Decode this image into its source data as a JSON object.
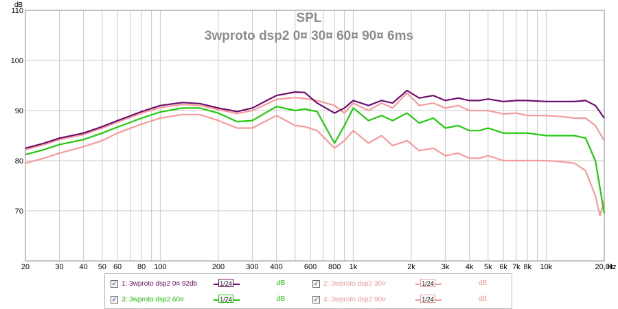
{
  "chart_data": {
    "type": "line",
    "title": "SPL",
    "subtitle": "3wproto dsp2 0¤ 30¤ 60¤ 90¤ 6ms",
    "y_unit": "dB",
    "x_unit": "Hz",
    "x_scale": "log",
    "xlim": [
      20,
      20000
    ],
    "ylim": [
      60,
      110
    ],
    "grid": true,
    "y_ticks": [
      {
        "value": 110,
        "label": "110"
      },
      {
        "value": 100,
        "label": "100"
      },
      {
        "value": 90,
        "label": "90"
      },
      {
        "value": 80,
        "label": "80"
      },
      {
        "value": 70,
        "label": "70"
      }
    ],
    "x_ticks": [
      {
        "value": 20,
        "label": "20"
      },
      {
        "value": 30,
        "label": "30"
      },
      {
        "value": 40,
        "label": "40"
      },
      {
        "value": 50,
        "label": "50"
      },
      {
        "value": 60,
        "label": "60"
      },
      {
        "value": 80,
        "label": "80"
      },
      {
        "value": 100,
        "label": "100"
      },
      {
        "value": 200,
        "label": "200"
      },
      {
        "value": 300,
        "label": "300"
      },
      {
        "value": 400,
        "label": "400"
      },
      {
        "value": 600,
        "label": "600"
      },
      {
        "value": 800,
        "label": "800"
      },
      {
        "value": 1000,
        "label": "1k"
      },
      {
        "value": 2000,
        "label": "2k"
      },
      {
        "value": 3000,
        "label": "3k"
      },
      {
        "value": 4000,
        "label": "4k"
      },
      {
        "value": 5000,
        "label": "5k"
      },
      {
        "value": 6000,
        "label": "6k"
      },
      {
        "value": 7000,
        "label": "7k"
      },
      {
        "value": 8000,
        "label": "8k"
      },
      {
        "value": 10000,
        "label": "10k"
      },
      {
        "value": 20000,
        "label": "20,0k"
      }
    ],
    "series": [
      {
        "name": "1: 3wproto dsp2 0¤ 92db",
        "color": "#6e0d6e",
        "points": [
          [
            20,
            82.5
          ],
          [
            25,
            83.5
          ],
          [
            30,
            84.5
          ],
          [
            40,
            85.5
          ],
          [
            50,
            86.8
          ],
          [
            60,
            88
          ],
          [
            80,
            89.8
          ],
          [
            100,
            91
          ],
          [
            130,
            91.6
          ],
          [
            160,
            91.4
          ],
          [
            200,
            90.5
          ],
          [
            250,
            89.8
          ],
          [
            300,
            90.5
          ],
          [
            400,
            93
          ],
          [
            500,
            93.7
          ],
          [
            560,
            93.6
          ],
          [
            650,
            91.5
          ],
          [
            800,
            89.5
          ],
          [
            900,
            90.5
          ],
          [
            1000,
            92
          ],
          [
            1200,
            91
          ],
          [
            1400,
            92
          ],
          [
            1600,
            91.5
          ],
          [
            1900,
            94
          ],
          [
            2200,
            92.5
          ],
          [
            2600,
            93
          ],
          [
            3000,
            92
          ],
          [
            3500,
            92.5
          ],
          [
            4000,
            92
          ],
          [
            4500,
            92
          ],
          [
            5000,
            92.3
          ],
          [
            6000,
            91.8
          ],
          [
            7000,
            92
          ],
          [
            8000,
            92
          ],
          [
            10000,
            91.8
          ],
          [
            12000,
            91.8
          ],
          [
            14000,
            91.8
          ],
          [
            16000,
            92
          ],
          [
            18000,
            91
          ],
          [
            20000,
            88.5
          ]
        ]
      },
      {
        "name": "2: 3wproto dsp2 30¤",
        "color": "#f49b9b",
        "points": [
          [
            20,
            82.2
          ],
          [
            25,
            83.2
          ],
          [
            30,
            84.2
          ],
          [
            40,
            85.2
          ],
          [
            50,
            86.5
          ],
          [
            60,
            87.7
          ],
          [
            80,
            89.5
          ],
          [
            100,
            90.6
          ],
          [
            130,
            91.2
          ],
          [
            160,
            91
          ],
          [
            200,
            90.2
          ],
          [
            250,
            89.4
          ],
          [
            300,
            90
          ],
          [
            400,
            92.2
          ],
          [
            500,
            92.6
          ],
          [
            560,
            92.4
          ],
          [
            650,
            92
          ],
          [
            800,
            91
          ],
          [
            900,
            89.5
          ],
          [
            1000,
            91.5
          ],
          [
            1200,
            90
          ],
          [
            1400,
            91.5
          ],
          [
            1600,
            90.5
          ],
          [
            1900,
            93.5
          ],
          [
            2200,
            91
          ],
          [
            2600,
            91.5
          ],
          [
            3000,
            90.5
          ],
          [
            3500,
            91
          ],
          [
            4000,
            90
          ],
          [
            4500,
            90
          ],
          [
            5000,
            90
          ],
          [
            6000,
            89.3
          ],
          [
            7000,
            89.5
          ],
          [
            8000,
            89
          ],
          [
            10000,
            89
          ],
          [
            12000,
            88.8
          ],
          [
            14000,
            88.5
          ],
          [
            16000,
            88.5
          ],
          [
            18000,
            87
          ],
          [
            20000,
            84
          ]
        ]
      },
      {
        "name": "3: 3wproto dsp2 60¤",
        "color": "#22c90d",
        "points": [
          [
            20,
            81.2
          ],
          [
            25,
            82.2
          ],
          [
            30,
            83.2
          ],
          [
            40,
            84.2
          ],
          [
            50,
            85.5
          ],
          [
            60,
            86.7
          ],
          [
            80,
            88.5
          ],
          [
            100,
            89.7
          ],
          [
            130,
            90.5
          ],
          [
            160,
            90.5
          ],
          [
            200,
            89.5
          ],
          [
            250,
            87.8
          ],
          [
            300,
            88
          ],
          [
            400,
            90.8
          ],
          [
            500,
            90
          ],
          [
            560,
            90.3
          ],
          [
            650,
            89.8
          ],
          [
            800,
            83.5
          ],
          [
            900,
            87
          ],
          [
            1000,
            90.5
          ],
          [
            1200,
            88
          ],
          [
            1400,
            89
          ],
          [
            1600,
            88
          ],
          [
            1900,
            89.5
          ],
          [
            2200,
            87.5
          ],
          [
            2600,
            88.5
          ],
          [
            3000,
            86.5
          ],
          [
            3500,
            87
          ],
          [
            4000,
            86
          ],
          [
            4500,
            86
          ],
          [
            5000,
            86.5
          ],
          [
            6000,
            85.5
          ],
          [
            7000,
            85.5
          ],
          [
            8000,
            85.5
          ],
          [
            10000,
            85
          ],
          [
            12000,
            85
          ],
          [
            14000,
            85
          ],
          [
            16000,
            84.5
          ],
          [
            18000,
            80
          ],
          [
            19500,
            72
          ],
          [
            20000,
            69.5
          ]
        ]
      },
      {
        "name": "4: 3wproto dsp2 90¤",
        "color": "#f49b9b",
        "points": [
          [
            20,
            79.5
          ],
          [
            25,
            80.5
          ],
          [
            30,
            81.5
          ],
          [
            40,
            82.8
          ],
          [
            50,
            84
          ],
          [
            60,
            85.5
          ],
          [
            80,
            87.3
          ],
          [
            100,
            88.5
          ],
          [
            130,
            89.2
          ],
          [
            160,
            89.2
          ],
          [
            200,
            88
          ],
          [
            250,
            86.5
          ],
          [
            300,
            86.5
          ],
          [
            400,
            89
          ],
          [
            500,
            87
          ],
          [
            560,
            86.8
          ],
          [
            650,
            86
          ],
          [
            800,
            82.5
          ],
          [
            900,
            84
          ],
          [
            1000,
            86
          ],
          [
            1200,
            83.5
          ],
          [
            1400,
            85
          ],
          [
            1600,
            83
          ],
          [
            1900,
            84
          ],
          [
            2200,
            82
          ],
          [
            2600,
            82.5
          ],
          [
            3000,
            81
          ],
          [
            3500,
            81.5
          ],
          [
            4000,
            80.5
          ],
          [
            4500,
            80.5
          ],
          [
            5000,
            81
          ],
          [
            6000,
            80
          ],
          [
            7000,
            80
          ],
          [
            8000,
            80
          ],
          [
            10000,
            80
          ],
          [
            12000,
            79.8
          ],
          [
            14000,
            79.5
          ],
          [
            16000,
            78
          ],
          [
            18000,
            73
          ],
          [
            19000,
            69
          ],
          [
            20000,
            72
          ]
        ]
      }
    ]
  },
  "legend": {
    "items": [
      {
        "label": "1: 3wproto dsp2 0¤ 92db",
        "smoothing": "1/24",
        "unit": "dB",
        "color": "#6e0d6e",
        "checked": true
      },
      {
        "label": "2: 3wproto dsp2 30¤",
        "smoothing": "1/24",
        "unit": "dB",
        "color": "#f49b9b",
        "checked": true
      },
      {
        "label": "3: 3wproto dsp2 60¤",
        "smoothing": "1/24",
        "unit": "dB",
        "color": "#22c90d",
        "checked": true
      },
      {
        "label": "4: 3wproto dsp2 90¤",
        "smoothing": "1/24",
        "unit": "dB",
        "color": "#f49b9b",
        "checked": true
      }
    ]
  }
}
